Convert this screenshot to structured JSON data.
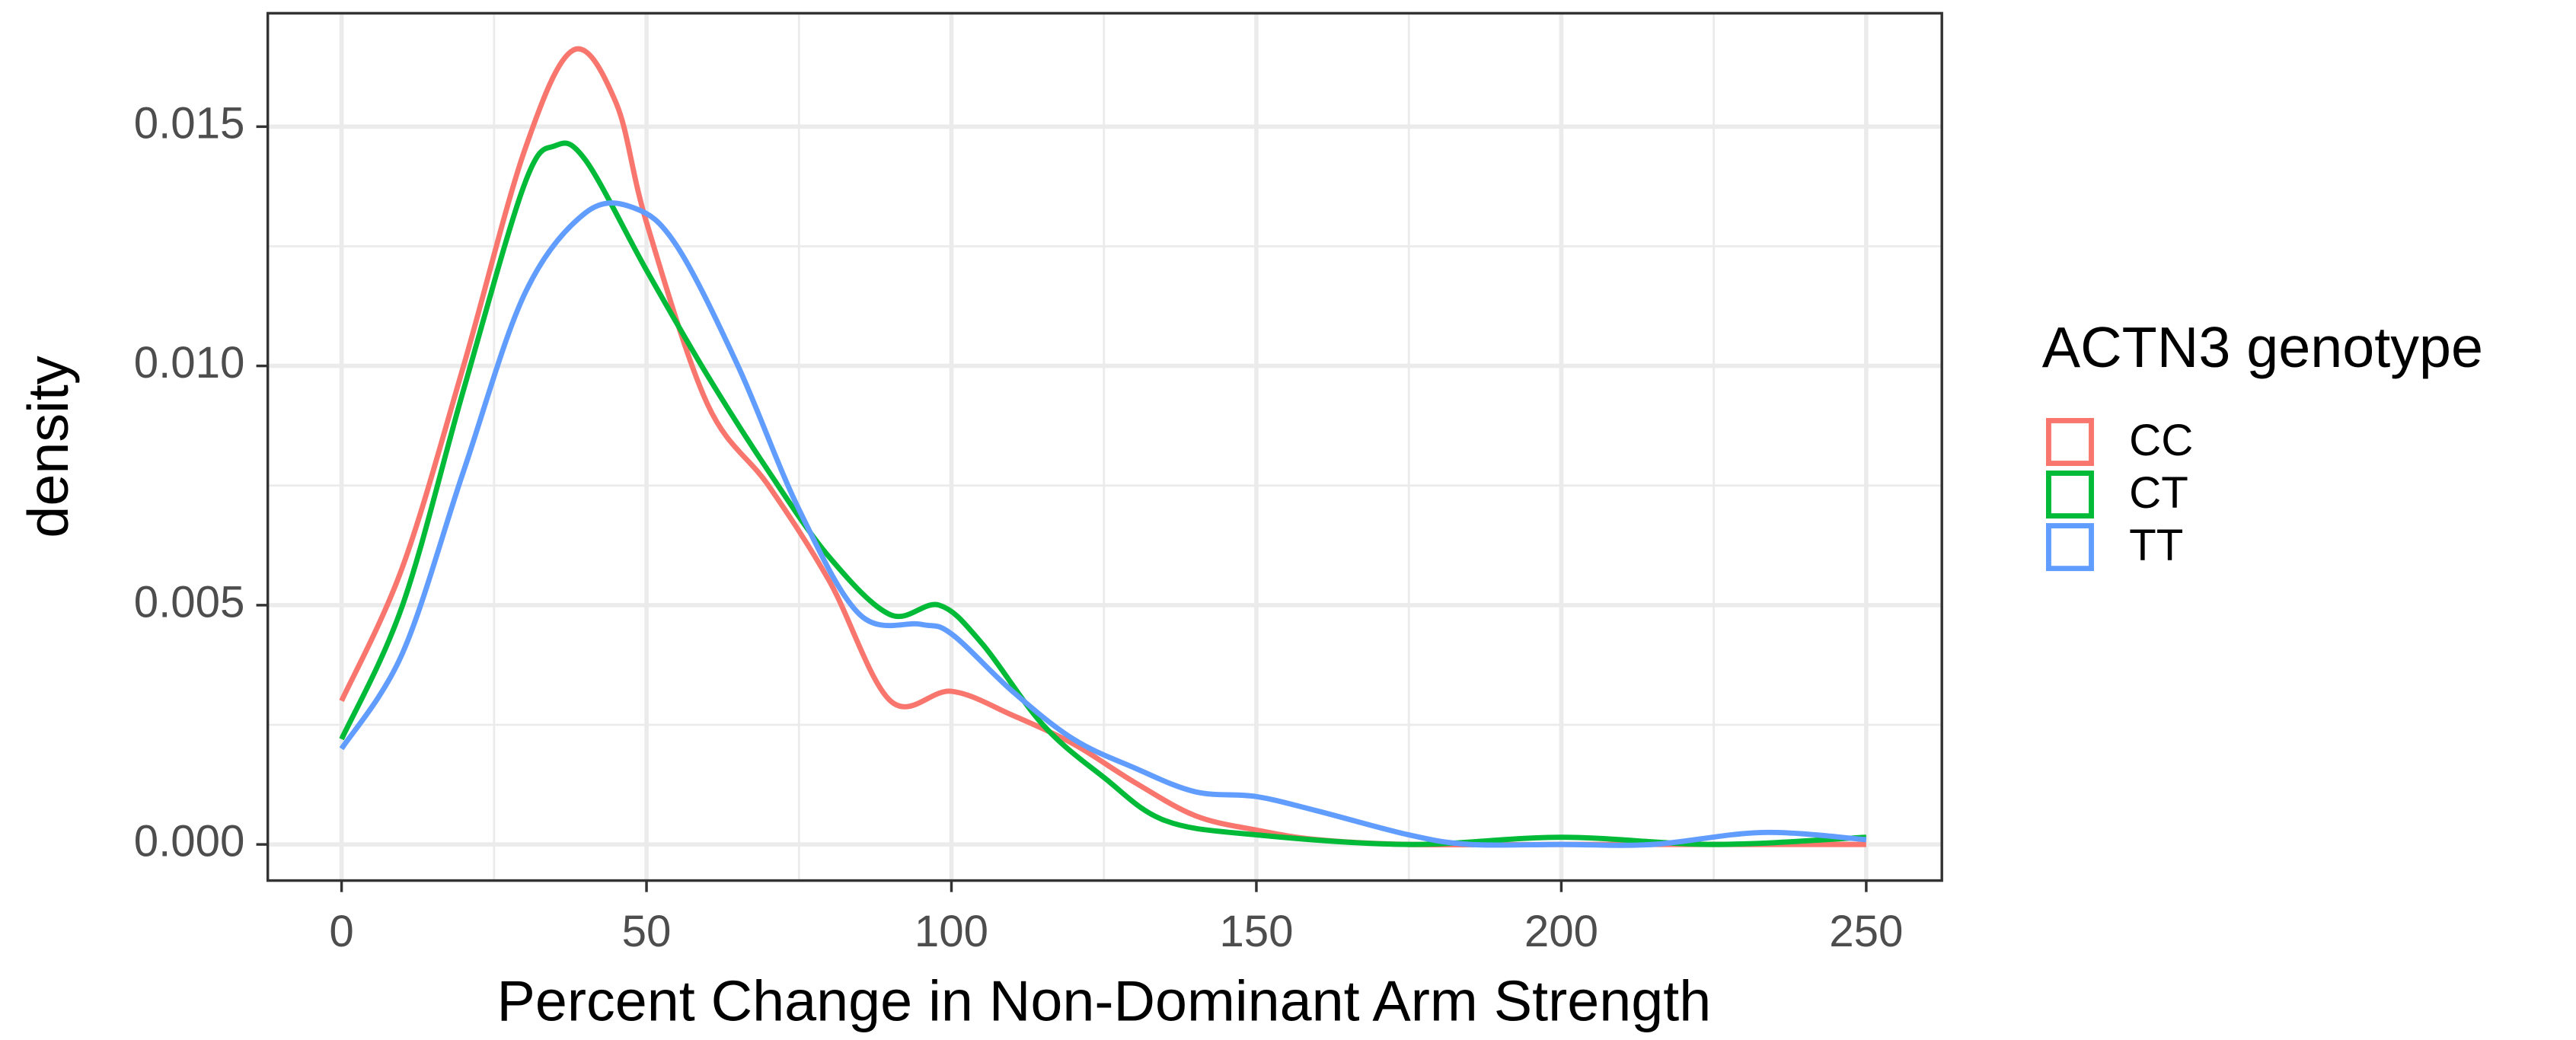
{
  "chart_data": {
    "type": "line",
    "x_label": "Percent Change in Non-Dominant Arm Strength",
    "y_label": "density",
    "legend_title": "ACTN3 genotype",
    "legend_position": "right",
    "grid": true,
    "xlim": [
      -12.1,
      262.4
    ],
    "ylim": [
      -0.000755,
      0.01737
    ],
    "xticks": [
      0,
      50,
      100,
      150,
      200,
      250
    ],
    "minor_xticks": [
      25,
      75,
      125,
      175,
      225
    ],
    "yticks": [
      {
        "value": 0,
        "label": "0.000"
      },
      {
        "value": 0.005,
        "label": "0.005"
      },
      {
        "value": 0.01,
        "label": "0.010"
      },
      {
        "value": 0.015,
        "label": "0.015"
      }
    ],
    "minor_yticks": [
      0.0025,
      0.0075,
      0.0125
    ],
    "series": [
      {
        "name": "CC",
        "color": "#F8766D",
        "x": [
          0,
          10,
          20,
          30,
          38,
          45,
          50,
          60,
          70,
          80,
          90,
          100,
          110,
          120,
          130,
          140,
          150,
          160,
          175,
          200,
          225,
          250
        ],
        "values": [
          0.003,
          0.0058,
          0.01,
          0.0145,
          0.0166,
          0.0155,
          0.013,
          0.0092,
          0.0075,
          0.0055,
          0.003,
          0.0032,
          0.0027,
          0.0021,
          0.0013,
          0.0006,
          0.0003,
          0.0001,
          0,
          0,
          0,
          0
        ]
      },
      {
        "name": "CT",
        "color": "#00BA38",
        "x": [
          0,
          10,
          20,
          30,
          35,
          40,
          50,
          60,
          70,
          80,
          90,
          98,
          105,
          115,
          125,
          135,
          150,
          175,
          200,
          225,
          250
        ],
        "values": [
          0.0022,
          0.005,
          0.0095,
          0.0138,
          0.0146,
          0.0143,
          0.012,
          0.0098,
          0.0078,
          0.006,
          0.0048,
          0.005,
          0.0042,
          0.0025,
          0.0014,
          0.0005,
          0.0002,
          0,
          0.00015,
          0,
          0.00015
        ]
      },
      {
        "name": "TT",
        "color": "#619CFF",
        "x": [
          0,
          10,
          20,
          30,
          40,
          48,
          55,
          65,
          75,
          85,
          95,
          100,
          110,
          120,
          130,
          140,
          150,
          160,
          175,
          185,
          200,
          215,
          233,
          250
        ],
        "values": [
          0.002,
          0.004,
          0.0078,
          0.0115,
          0.0132,
          0.0133,
          0.0125,
          0.01,
          0.007,
          0.0048,
          0.0046,
          0.0044,
          0.0032,
          0.0022,
          0.0016,
          0.0011,
          0.001,
          0.0007,
          0.0002,
          0,
          0,
          0,
          0.00025,
          0.0001
        ]
      }
    ]
  }
}
